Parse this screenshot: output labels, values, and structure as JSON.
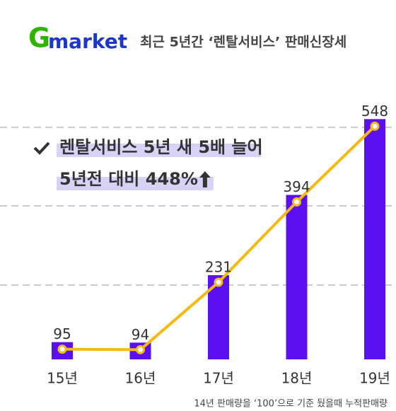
{
  "brand": [
    "G",
    "market"
  ],
  "chart_data": {
    "type": "bar",
    "title": "최근 5년간 ‘렌탈서비스’ 판매신장세",
    "annotations": [
      "렌탈서비스 5년 새 5배 늘어",
      "5년전 대비 448%"
    ],
    "categories": [
      "15년",
      "16년",
      "17년",
      "18년",
      "19년"
    ],
    "values": [
      95,
      94,
      231,
      394,
      548
    ],
    "color": "#5b10f2",
    "line_color": "#f7b90f",
    "ylim": [
      60,
      560
    ],
    "note": "14년 판매량을 ‘100’으로 기준 뒀을때 누적판매량"
  }
}
